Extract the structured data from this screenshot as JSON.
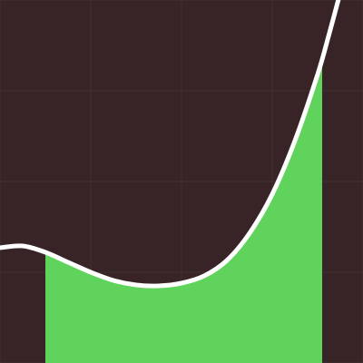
{
  "canvas": {
    "background": "#382426",
    "grid_color": "#42302f",
    "fill_color": "#5fd35b",
    "curve_color": "#ffffff"
  },
  "diagram": {
    "type": "area-under-curve",
    "grid": true,
    "x_domain": [
      0,
      4
    ],
    "y_domain": [
      0,
      4
    ],
    "shaded_interval": [
      0.5,
      3.55
    ],
    "curve_points": [
      [
        0.0,
        1.27
      ],
      [
        0.25,
        1.29
      ],
      [
        0.5,
        1.22
      ],
      [
        0.75,
        1.11
      ],
      [
        1.0,
        1.0
      ],
      [
        1.25,
        0.91
      ],
      [
        1.5,
        0.86
      ],
      [
        1.75,
        0.85
      ],
      [
        2.0,
        0.88
      ],
      [
        2.25,
        0.96
      ],
      [
        2.5,
        1.13
      ],
      [
        2.75,
        1.43
      ],
      [
        3.0,
        1.86
      ],
      [
        3.25,
        2.45
      ],
      [
        3.5,
        3.18
      ],
      [
        3.62,
        3.6
      ],
      [
        3.76,
        4.12
      ]
    ]
  }
}
